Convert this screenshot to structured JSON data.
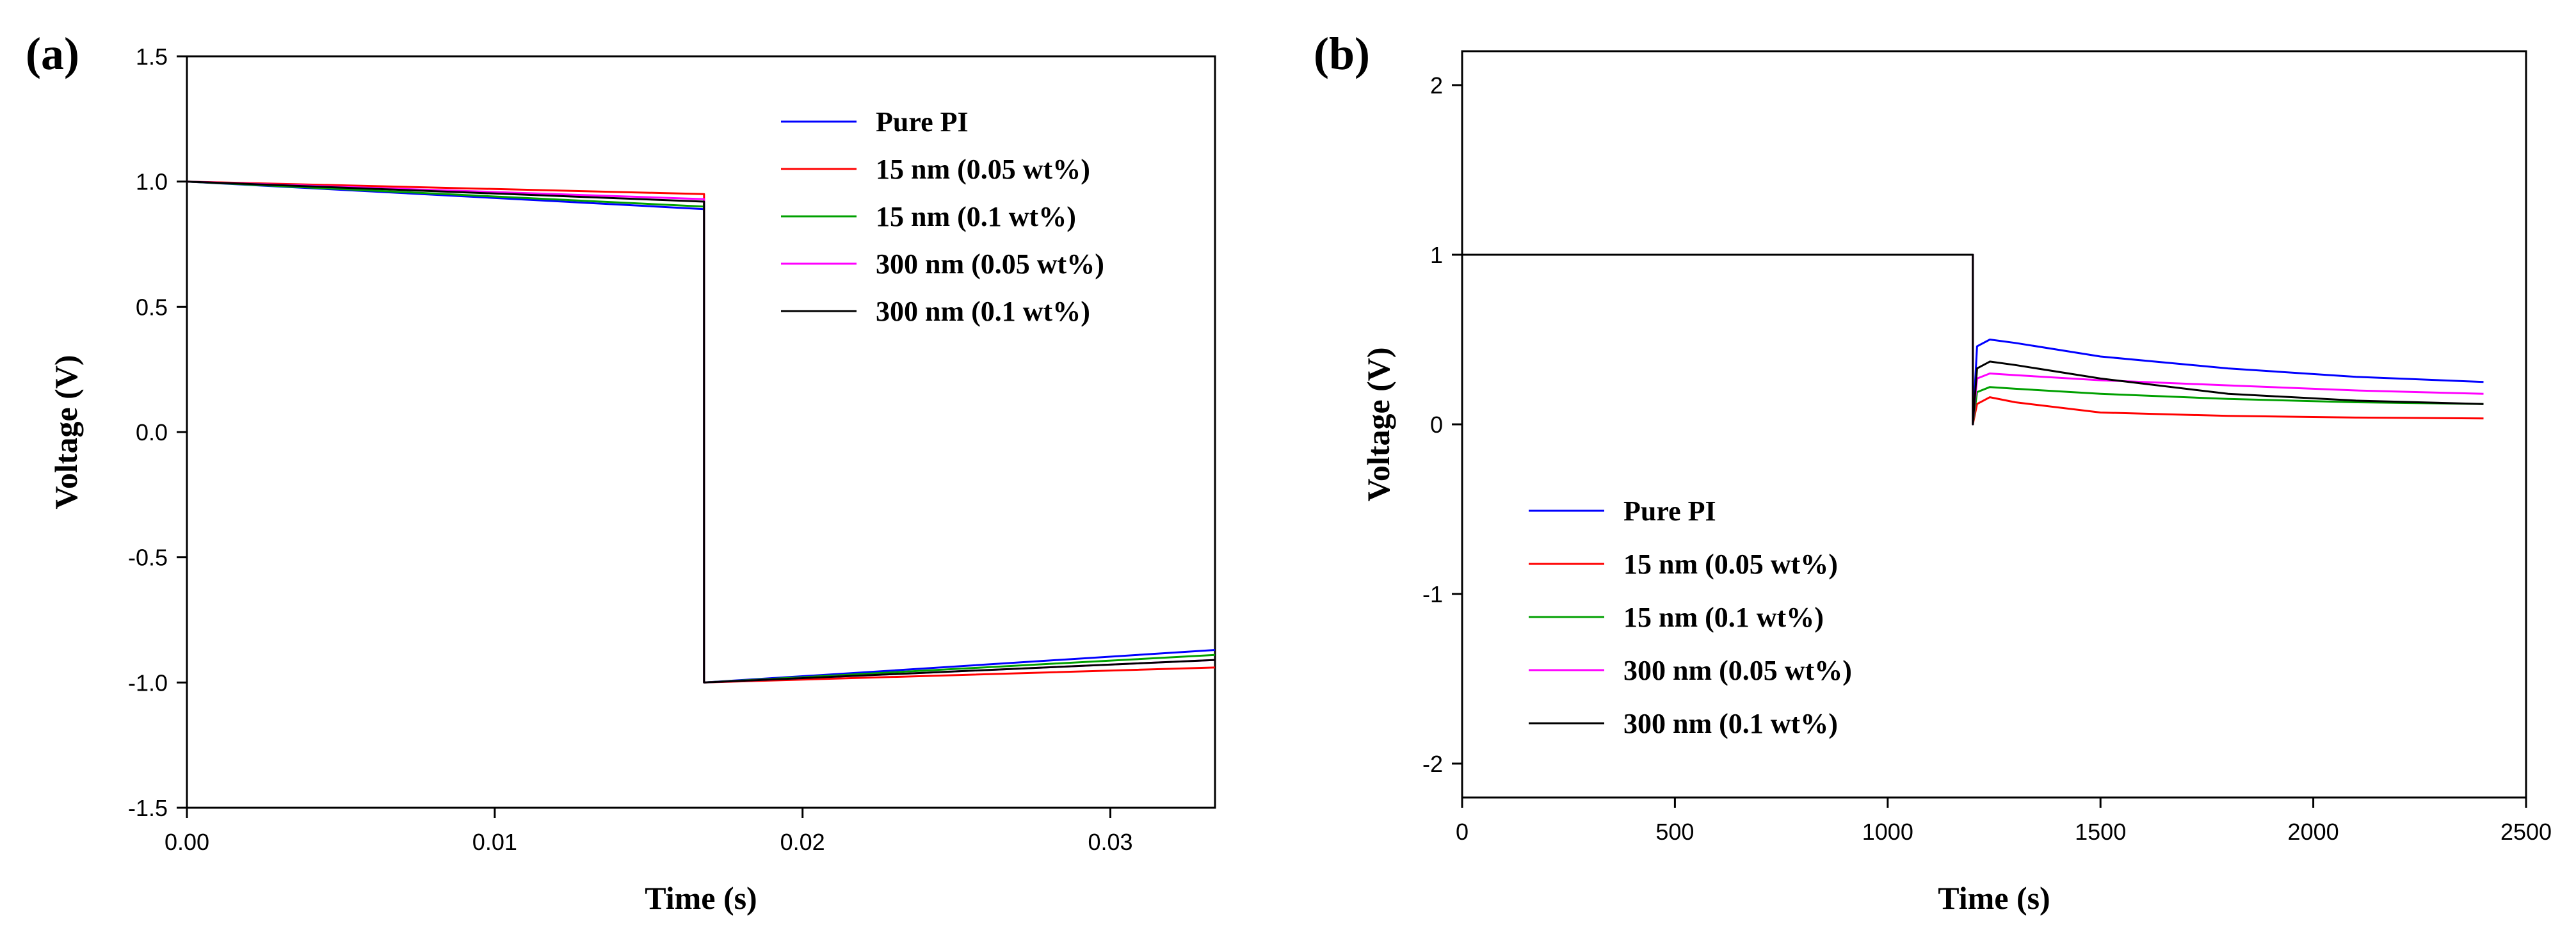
{
  "chart_data": [
    {
      "type": "line",
      "panel_label": "(a)",
      "xlabel": "Time (s)",
      "ylabel": "Voltage (V)",
      "xlim": [
        0,
        0.0334
      ],
      "ylim": [
        -1.5,
        1.5
      ],
      "x_ticks": [
        0.0,
        0.01,
        0.02,
        0.03
      ],
      "x_tick_labels": [
        "0.00",
        "0.01",
        "0.02",
        "0.03"
      ],
      "y_ticks": [
        -1.5,
        -1.0,
        -0.5,
        0.0,
        0.5,
        1.0,
        1.5
      ],
      "y_tick_labels": [
        "-1.5",
        "-1.0",
        "-0.5",
        "0.0",
        "0.5",
        "1.0",
        "1.5"
      ],
      "legend_position": "top-right",
      "series": [
        {
          "name": "Pure PI",
          "color": "#0000ff",
          "x": [
            0,
            0.0168,
            0.0168,
            0.0334
          ],
          "y": [
            1.0,
            0.89,
            -1.0,
            -0.87
          ]
        },
        {
          "name": "15 nm (0.05 wt%)",
          "color": "#ff0000",
          "x": [
            0,
            0.0168,
            0.0168,
            0.0334
          ],
          "y": [
            1.0,
            0.95,
            -1.0,
            -0.94
          ]
        },
        {
          "name": "15 nm (0.1 wt%)",
          "color": "#00a000",
          "x": [
            0,
            0.0168,
            0.0168,
            0.0334
          ],
          "y": [
            1.0,
            0.9,
            -1.0,
            -0.89
          ]
        },
        {
          "name": "300 nm (0.05 wt%)",
          "color": "#ff00ff",
          "x": [
            0,
            0.0168,
            0.0168,
            0.0334
          ],
          "y": [
            1.0,
            0.93,
            -1.0,
            -0.91
          ]
        },
        {
          "name": "300 nm (0.1 wt%)",
          "color": "#000000",
          "x": [
            0,
            0.0168,
            0.0168,
            0.0334
          ],
          "y": [
            1.0,
            0.92,
            -1.0,
            -0.91
          ]
        }
      ]
    },
    {
      "type": "line",
      "panel_label": "(b)",
      "xlabel": "Time (s)",
      "ylabel": "Voltage (V)",
      "xlim": [
        0,
        2500
      ],
      "ylim": [
        -2.2,
        2.2
      ],
      "x_ticks": [
        0,
        500,
        1000,
        1500,
        2000,
        2500
      ],
      "x_tick_labels": [
        "0",
        "500",
        "1000",
        "1500",
        "2000",
        "2500"
      ],
      "y_ticks": [
        -2,
        -1,
        0,
        1,
        2
      ],
      "y_tick_labels": [
        "-2",
        "-1",
        "0",
        "1",
        "2"
      ],
      "legend_position": "bottom-left",
      "series": [
        {
          "name": "Pure PI",
          "color": "#0000ff",
          "x": [
            0,
            1200,
            1200,
            1210,
            1240,
            1300,
            1500,
            1800,
            2100,
            2400
          ],
          "y": [
            1.0,
            1.0,
            0.0,
            0.46,
            0.5,
            0.48,
            0.4,
            0.33,
            0.28,
            0.25
          ]
        },
        {
          "name": "15 nm (0.05 wt%)",
          "color": "#ff0000",
          "x": [
            0,
            1200,
            1200,
            1210,
            1240,
            1300,
            1500,
            1800,
            2100,
            2400
          ],
          "y": [
            1.0,
            1.0,
            0.0,
            0.12,
            0.16,
            0.13,
            0.07,
            0.05,
            0.04,
            0.035
          ]
        },
        {
          "name": "15 nm (0.1 wt%)",
          "color": "#00a000",
          "x": [
            0,
            1200,
            1200,
            1210,
            1240,
            1300,
            1500,
            1800,
            2100,
            2400
          ],
          "y": [
            1.0,
            1.0,
            0.0,
            0.19,
            0.22,
            0.21,
            0.18,
            0.15,
            0.13,
            0.12
          ]
        },
        {
          "name": "300 nm (0.05 wt%)",
          "color": "#ff00ff",
          "x": [
            0,
            1200,
            1200,
            1210,
            1240,
            1300,
            1500,
            1800,
            2100,
            2400
          ],
          "y": [
            1.0,
            1.0,
            0.0,
            0.27,
            0.3,
            0.29,
            0.26,
            0.23,
            0.2,
            0.18
          ]
        },
        {
          "name": "300 nm (0.1 wt%)",
          "color": "#000000",
          "x": [
            0,
            1200,
            1200,
            1210,
            1240,
            1300,
            1500,
            1800,
            2100,
            2400
          ],
          "y": [
            1.0,
            1.0,
            0.0,
            0.33,
            0.37,
            0.35,
            0.27,
            0.18,
            0.14,
            0.12
          ]
        }
      ]
    }
  ]
}
